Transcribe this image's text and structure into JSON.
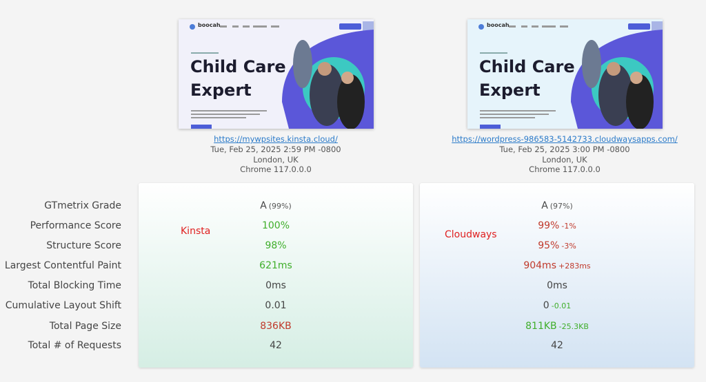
{
  "rows": [
    "GTmetrix Grade",
    "Performance Score",
    "Structure Score",
    "Largest Contentful Paint",
    "Total Blocking Time",
    "Cumulative Layout Shift",
    "Total Page Size",
    "Total # of Requests"
  ],
  "sites": [
    {
      "thumbnail": {
        "logo": "boocah",
        "headline": [
          "Child Care",
          "Expert"
        ]
      },
      "url": "https://mywpsites.kinsta.cloud/",
      "date": "Tue, Feb 25, 2025 2:59 PM -0800",
      "location": "London, UK",
      "browser": "Chrome 117.0.0.0",
      "label": "Kinsta",
      "metrics": [
        {
          "value": "A",
          "detail": "(99%)"
        },
        {
          "value": "100%",
          "color": "#3fae2a"
        },
        {
          "value": "98%",
          "color": "#3fae2a"
        },
        {
          "value": "621ms",
          "color": "#3fae2a"
        },
        {
          "value": "0ms"
        },
        {
          "value": "0.01"
        },
        {
          "value": "836KB",
          "color": "#c0392b"
        },
        {
          "value": "42"
        }
      ]
    },
    {
      "thumbnail": {
        "logo": "boocah",
        "headline": [
          "Child Care",
          "Expert"
        ]
      },
      "url": "https://wordpress-986583-5142733.cloudwaysapps.com/",
      "date": "Tue, Feb 25, 2025 3:00 PM -0800",
      "location": "London, UK",
      "browser": "Chrome 117.0.0.0",
      "label": "Cloudways",
      "metrics": [
        {
          "value": "A",
          "detail": "(97%)"
        },
        {
          "value": "99%",
          "color": "#c0392b",
          "detail": "-1%",
          "detail_color": "#c0392b"
        },
        {
          "value": "95%",
          "color": "#c0392b",
          "detail": "-3%",
          "detail_color": "#c0392b"
        },
        {
          "value": "904ms",
          "color": "#c0392b",
          "detail": "+283ms",
          "detail_color": "#c0392b"
        },
        {
          "value": "0ms"
        },
        {
          "value": "0",
          "detail": "-0.01",
          "detail_color": "#3fae2a"
        },
        {
          "value": "811KB",
          "color": "#3fae2a",
          "detail": "-25.3KB",
          "detail_color": "#3fae2a"
        },
        {
          "value": "42"
        }
      ]
    }
  ]
}
